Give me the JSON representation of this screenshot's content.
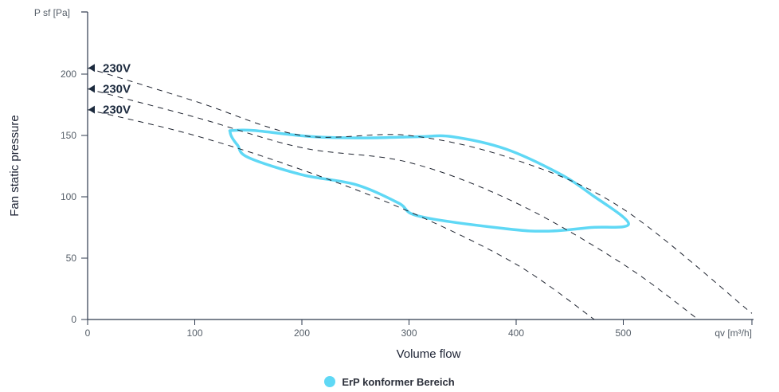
{
  "chart_data": {
    "type": "line",
    "ylabel_top": "P sf [Pa]",
    "ylabel": "Fan static pressure",
    "xlabel": "Volume flow",
    "xlabel_end": "qv [m³/h]",
    "xlim": [
      0,
      620
    ],
    "ylim": [
      0,
      250
    ],
    "x_ticks": [
      0,
      100,
      200,
      300,
      400,
      500
    ],
    "y_ticks": [
      0,
      50,
      100,
      150,
      200
    ],
    "series": [
      {
        "label": "230V",
        "style": "dashed",
        "x": [
          0,
          100,
          200,
          300,
          400,
          500,
          620
        ],
        "y": [
          205,
          178,
          150,
          150,
          130,
          90,
          5
        ]
      },
      {
        "label": "230V",
        "style": "dashed",
        "x": [
          0,
          100,
          200,
          300,
          400,
          500,
          570
        ],
        "y": [
          188,
          165,
          140,
          128,
          95,
          45,
          0
        ]
      },
      {
        "label": "230V",
        "style": "dashed",
        "x": [
          0,
          100,
          200,
          300,
          400,
          473
        ],
        "y": [
          171,
          150,
          122,
          88,
          45,
          0
        ]
      }
    ],
    "area": {
      "name": "ErP konformer Bereich",
      "color": "#5fd8f5",
      "x": [
        135,
        155,
        210,
        260,
        310,
        340,
        390,
        440,
        470,
        505,
        470,
        430,
        390,
        310,
        290,
        250,
        200,
        150,
        140,
        135,
        133
      ],
      "y": [
        154,
        154,
        149,
        148,
        149,
        149,
        139,
        119,
        102,
        78,
        75,
        72,
        74,
        84,
        95,
        110,
        118,
        132,
        142,
        148,
        153
      ]
    },
    "legend": [
      {
        "label": "ErP konformer Bereich",
        "color": "#5fd8f5"
      }
    ],
    "grid": false,
    "legend_position": "bottom-center"
  }
}
